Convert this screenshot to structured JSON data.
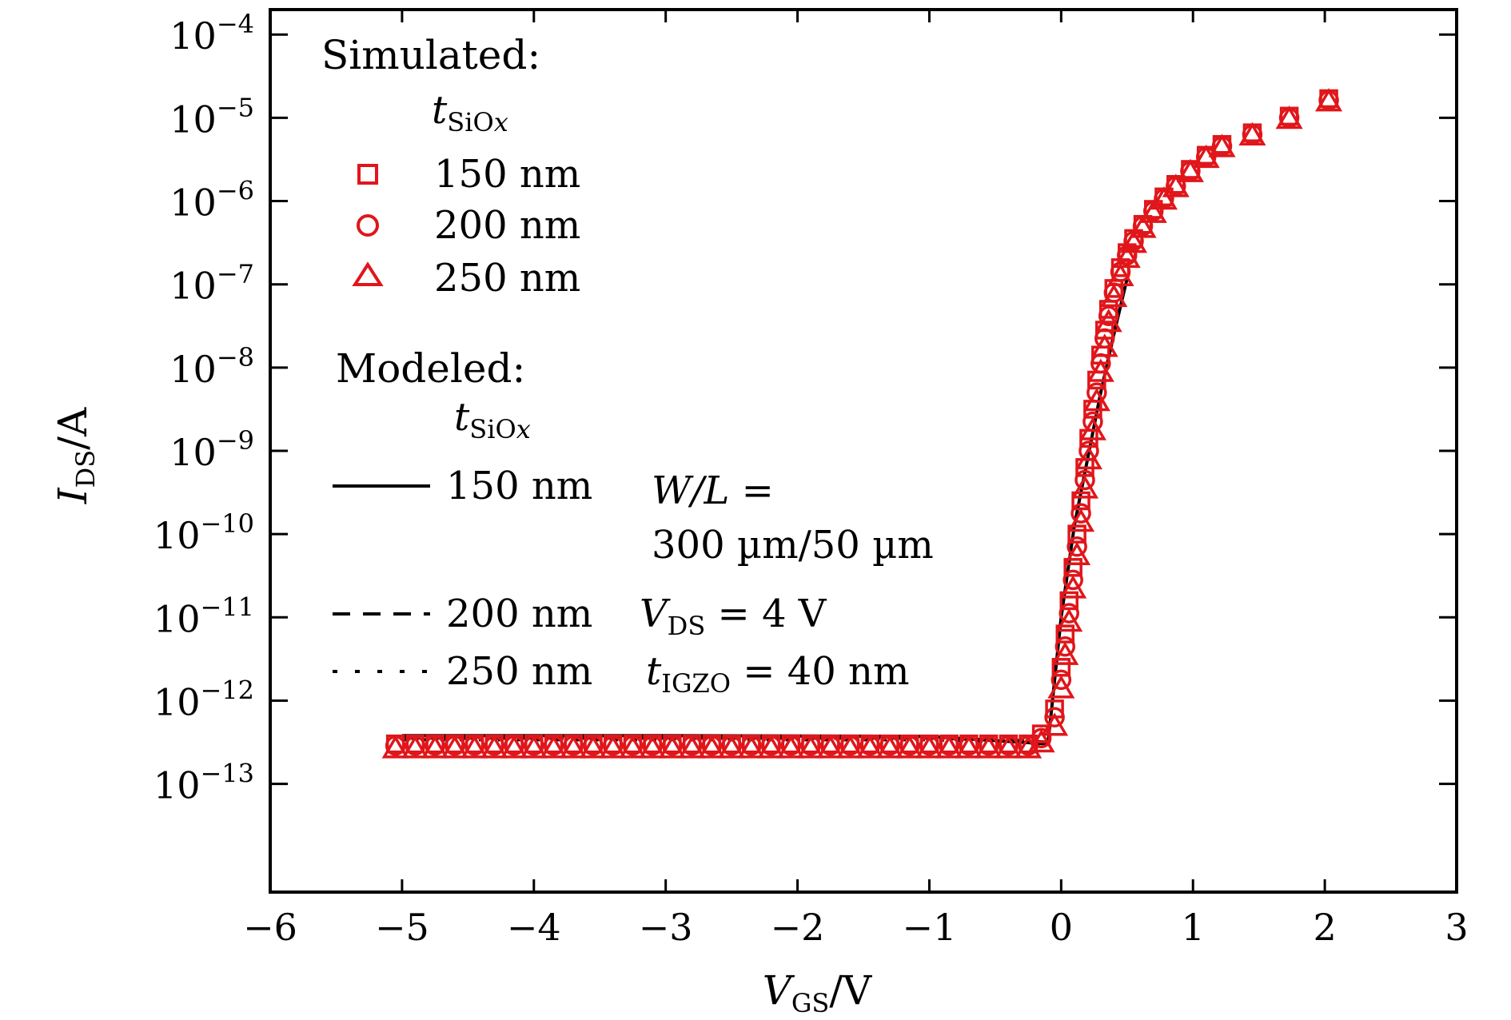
{
  "chart_data": {
    "type": "scatter",
    "xlabel": {
      "main": "V",
      "sub": "GS",
      "unit": "/V"
    },
    "ylabel": {
      "main": "I",
      "sub": "DS",
      "unit": "/A"
    },
    "xlim": [
      -6,
      3
    ],
    "ylim_log10": [
      -14.3,
      -3.7
    ],
    "yscale": "log",
    "x_ticks": [
      -6,
      -5,
      -4,
      -3,
      -2,
      -1,
      0,
      1,
      2,
      3
    ],
    "x_tick_labels": [
      "−6",
      "−5",
      "−4",
      "−3",
      "−2",
      "−1",
      "0",
      "1",
      "2",
      "3"
    ],
    "y_tick_exponents": [
      -4,
      -5,
      -6,
      -7,
      -8,
      -9,
      -10,
      -11,
      -12,
      -13
    ],
    "y_tick_labels": [
      {
        "base": "10",
        "exp": "−4"
      },
      {
        "base": "10",
        "exp": "−5"
      },
      {
        "base": "10",
        "exp": "−6"
      },
      {
        "base": "10",
        "exp": "−7"
      },
      {
        "base": "10",
        "exp": "−8"
      },
      {
        "base": "10",
        "exp": "−9"
      },
      {
        "base": "10",
        "exp": "−10"
      },
      {
        "base": "10",
        "exp": "−11"
      },
      {
        "base": "10",
        "exp": "−12"
      },
      {
        "base": "10",
        "exp": "−13"
      }
    ],
    "colors": {
      "simulated": "#e0161b",
      "modeled": "#000000"
    },
    "legend": {
      "simulated_header": "Simulated:",
      "modeled_header": "Modeled:",
      "param": {
        "main": "t",
        "sub": "SiO",
        "sub_italic": "x"
      },
      "entries": [
        {
          "marker": "square",
          "label": "150 nm"
        },
        {
          "marker": "circle",
          "label": "200 nm"
        },
        {
          "marker": "triangle",
          "label": "250 nm"
        }
      ],
      "line_entries": [
        {
          "style": "solid",
          "label": "150 nm"
        },
        {
          "style": "dashed",
          "label": "200 nm"
        },
        {
          "style": "dotted",
          "label": "250 nm"
        }
      ]
    },
    "annotations": {
      "wl_line1": "W/L =",
      "wl_line2": "300 µm/50 µm",
      "vds": {
        "main": "V",
        "sub": "DS",
        "rest": " =  4 V"
      },
      "tigzo": {
        "main": "t",
        "sub": "IGZO",
        "rest": " = 40 nm"
      }
    },
    "simulated_series": [
      {
        "name": "150 nm",
        "marker": "square",
        "x": [
          -5.05,
          -4.9,
          -4.75,
          -4.6,
          -4.45,
          -4.3,
          -4.15,
          -4.0,
          -3.85,
          -3.7,
          -3.55,
          -3.4,
          -3.25,
          -3.1,
          -2.95,
          -2.8,
          -2.65,
          -2.5,
          -2.35,
          -2.2,
          -2.05,
          -1.9,
          -1.75,
          -1.6,
          -1.45,
          -1.3,
          -1.15,
          -1.0,
          -0.85,
          -0.7,
          -0.55,
          -0.4,
          -0.25,
          -0.15,
          -0.05,
          0.0,
          0.03,
          0.06,
          0.09,
          0.12,
          0.15,
          0.18,
          0.21,
          0.24,
          0.27,
          0.3,
          0.33,
          0.36,
          0.4,
          0.45,
          0.5,
          0.55,
          0.62,
          0.7,
          0.78,
          0.87,
          0.98,
          1.1,
          1.22,
          1.45,
          1.73,
          2.03
        ],
        "y": [
          -12.52,
          -12.52,
          -12.52,
          -12.52,
          -12.52,
          -12.52,
          -12.52,
          -12.52,
          -12.52,
          -12.52,
          -12.52,
          -12.52,
          -12.52,
          -12.52,
          -12.52,
          -12.52,
          -12.52,
          -12.52,
          -12.52,
          -12.52,
          -12.52,
          -12.52,
          -12.52,
          -12.52,
          -12.52,
          -12.52,
          -12.52,
          -12.52,
          -12.52,
          -12.52,
          -12.52,
          -12.52,
          -12.52,
          -12.4,
          -12.1,
          -11.6,
          -11.2,
          -10.8,
          -10.4,
          -10.0,
          -9.6,
          -9.2,
          -8.85,
          -8.5,
          -8.15,
          -7.85,
          -7.55,
          -7.3,
          -7.05,
          -6.8,
          -6.62,
          -6.45,
          -6.28,
          -6.1,
          -5.95,
          -5.8,
          -5.62,
          -5.45,
          -5.32,
          -5.18,
          -4.98,
          -4.77
        ]
      },
      {
        "name": "200 nm",
        "marker": "circle",
        "x": [
          -5.05,
          -4.9,
          -4.75,
          -4.6,
          -4.45,
          -4.3,
          -4.15,
          -4.0,
          -3.85,
          -3.7,
          -3.55,
          -3.4,
          -3.25,
          -3.1,
          -2.95,
          -2.8,
          -2.65,
          -2.5,
          -2.35,
          -2.2,
          -2.05,
          -1.9,
          -1.75,
          -1.6,
          -1.45,
          -1.3,
          -1.15,
          -1.0,
          -0.85,
          -0.7,
          -0.55,
          -0.4,
          -0.25,
          -0.15,
          -0.05,
          0.0,
          0.03,
          0.06,
          0.09,
          0.12,
          0.15,
          0.18,
          0.21,
          0.24,
          0.27,
          0.3,
          0.33,
          0.36,
          0.4,
          0.45,
          0.5,
          0.55,
          0.62,
          0.7,
          0.78,
          0.87,
          0.98,
          1.1,
          1.22,
          1.45,
          1.73,
          2.03
        ],
        "y": [
          -12.54,
          -12.54,
          -12.54,
          -12.54,
          -12.54,
          -12.54,
          -12.54,
          -12.54,
          -12.54,
          -12.54,
          -12.54,
          -12.54,
          -12.54,
          -12.54,
          -12.54,
          -12.54,
          -12.54,
          -12.54,
          -12.54,
          -12.54,
          -12.54,
          -12.54,
          -12.54,
          -12.54,
          -12.54,
          -12.54,
          -12.54,
          -12.54,
          -12.54,
          -12.54,
          -12.54,
          -12.54,
          -12.54,
          -12.45,
          -12.2,
          -11.75,
          -11.35,
          -10.95,
          -10.55,
          -10.15,
          -9.75,
          -9.35,
          -9.0,
          -8.65,
          -8.3,
          -7.95,
          -7.65,
          -7.38,
          -7.1,
          -6.85,
          -6.65,
          -6.48,
          -6.3,
          -6.12,
          -5.97,
          -5.82,
          -5.64,
          -5.47,
          -5.34,
          -5.2,
          -5.0,
          -4.79
        ]
      },
      {
        "name": "250 nm",
        "marker": "triangle",
        "x": [
          -5.05,
          -4.9,
          -4.75,
          -4.6,
          -4.45,
          -4.3,
          -4.15,
          -4.0,
          -3.85,
          -3.7,
          -3.55,
          -3.4,
          -3.25,
          -3.1,
          -2.95,
          -2.8,
          -2.65,
          -2.5,
          -2.35,
          -2.2,
          -2.05,
          -1.9,
          -1.75,
          -1.6,
          -1.45,
          -1.3,
          -1.15,
          -1.0,
          -0.85,
          -0.7,
          -0.55,
          -0.4,
          -0.25,
          -0.15,
          -0.05,
          0.0,
          0.03,
          0.06,
          0.09,
          0.12,
          0.15,
          0.18,
          0.21,
          0.24,
          0.27,
          0.3,
          0.33,
          0.36,
          0.4,
          0.45,
          0.5,
          0.55,
          0.62,
          0.7,
          0.78,
          0.87,
          0.98,
          1.1,
          1.22,
          1.45,
          1.73,
          2.03
        ],
        "y": [
          -12.57,
          -12.57,
          -12.57,
          -12.57,
          -12.57,
          -12.57,
          -12.57,
          -12.57,
          -12.57,
          -12.57,
          -12.57,
          -12.57,
          -12.57,
          -12.57,
          -12.57,
          -12.57,
          -12.57,
          -12.57,
          -12.57,
          -12.57,
          -12.57,
          -12.57,
          -12.57,
          -12.57,
          -12.57,
          -12.57,
          -12.57,
          -12.57,
          -12.57,
          -12.57,
          -12.57,
          -12.57,
          -12.57,
          -12.5,
          -12.3,
          -11.85,
          -11.45,
          -11.05,
          -10.65,
          -10.25,
          -9.85,
          -9.45,
          -9.1,
          -8.75,
          -8.4,
          -8.05,
          -7.75,
          -7.45,
          -7.15,
          -6.9,
          -6.68,
          -6.5,
          -6.32,
          -6.14,
          -5.98,
          -5.83,
          -5.65,
          -5.48,
          -5.35,
          -5.21,
          -5.01,
          -4.8
        ]
      }
    ],
    "modeled_series": [
      {
        "name": "150 nm",
        "style": "solid",
        "x": [
          -5.0,
          -3.0,
          -1.0,
          -0.3,
          -0.1,
          0.0,
          0.1,
          0.2,
          0.3,
          0.4,
          0.5
        ],
        "y": [
          -12.42,
          -12.42,
          -12.43,
          -12.5,
          -12.52,
          -11.0,
          -9.9,
          -9.1,
          -8.3,
          -7.6,
          -6.93
        ]
      },
      {
        "name": "200 nm",
        "style": "dashed",
        "x": [
          -5.0,
          -3.0,
          -1.0,
          -0.3,
          -0.1
        ],
        "y": [
          -12.45,
          -12.45,
          -12.45,
          -12.48,
          -12.5
        ]
      },
      {
        "name": "250 nm",
        "style": "dotted",
        "x": [
          -5.0,
          -3.0,
          -1.0,
          -0.3,
          -0.1
        ],
        "y": [
          -12.47,
          -12.47,
          -12.47,
          -12.5,
          -12.52
        ]
      }
    ]
  }
}
